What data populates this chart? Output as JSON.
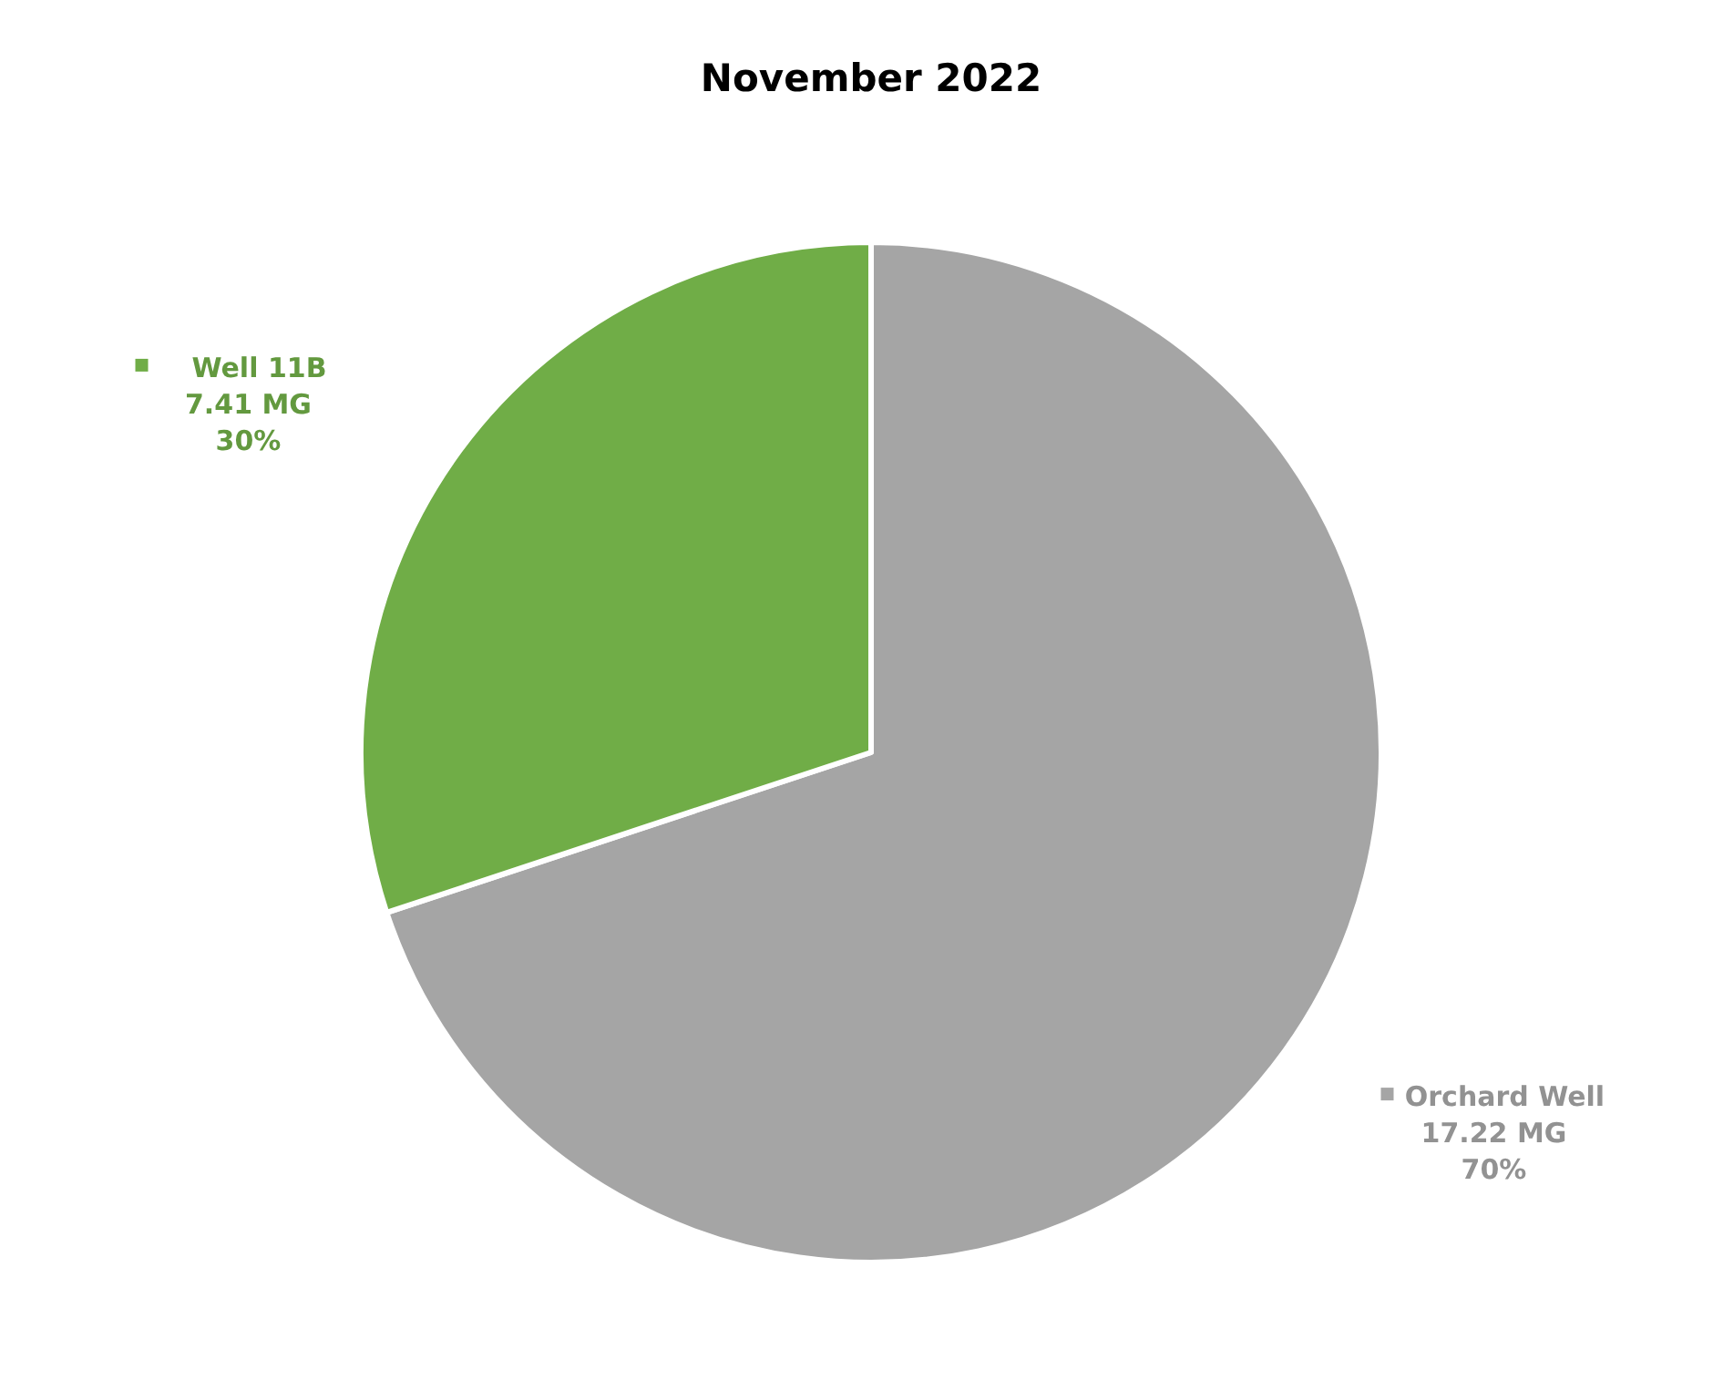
{
  "chart_data": {
    "type": "pie",
    "title": "November 2022",
    "categories": [
      "Orchard Well",
      "Well 11B"
    ],
    "values": [
      17.22,
      7.41
    ],
    "colors": [
      "#a5a5a5",
      "#70ad47"
    ],
    "legend": "right",
    "value_labels": [
      "17.22 MG\n70%",
      "7.41 MG\n30%"
    ]
  }
}
